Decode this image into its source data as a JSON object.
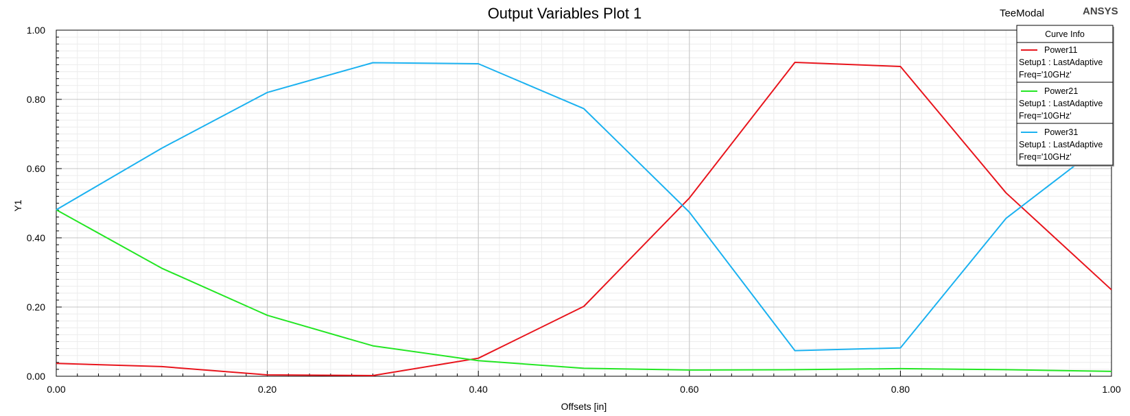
{
  "chart_data": {
    "type": "line",
    "title": "Output Variables Plot 1",
    "xlabel": "Offsets [in]",
    "ylabel": "Y1",
    "xlim": [
      0,
      1
    ],
    "ylim": [
      0,
      1
    ],
    "grid": true,
    "x_ticks": [
      "0.00",
      "0.20",
      "0.40",
      "0.60",
      "0.80",
      "1.00"
    ],
    "y_ticks": [
      "0.00",
      "0.20",
      "0.40",
      "0.60",
      "0.80",
      "1.00"
    ],
    "x": [
      0.0,
      0.1,
      0.2,
      0.3,
      0.4,
      0.5,
      0.6,
      0.7,
      0.8,
      0.9,
      1.0
    ],
    "series": [
      {
        "name": "Power11",
        "color": "#e8141c",
        "values": [
          0.037,
          0.028,
          0.004,
          0.002,
          0.052,
          0.202,
          0.515,
          0.907,
          0.895,
          0.53,
          0.25
        ]
      },
      {
        "name": "Power21",
        "color": "#22e622",
        "values": [
          0.481,
          0.312,
          0.176,
          0.088,
          0.045,
          0.023,
          0.018,
          0.019,
          0.022,
          0.019,
          0.014
        ]
      },
      {
        "name": "Power31",
        "color": "#1ab1f0",
        "values": [
          0.481,
          0.659,
          0.82,
          0.906,
          0.903,
          0.773,
          0.474,
          0.074,
          0.082,
          0.456,
          0.69
        ]
      }
    ],
    "legend": {
      "title": "Curve Info",
      "position": "top-right",
      "entries": [
        {
          "name": "Power11",
          "line1": "Setup1 : LastAdaptive",
          "line2": "Freq='10GHz'"
        },
        {
          "name": "Power21",
          "line1": "Setup1 : LastAdaptive",
          "line2": "Freq='10GHz'"
        },
        {
          "name": "Power31",
          "line1": "Setup1 : LastAdaptive",
          "line2": "Freq='10GHz'"
        }
      ]
    }
  },
  "header": {
    "design_name": "TeeModal",
    "brand": "ANSYS"
  }
}
